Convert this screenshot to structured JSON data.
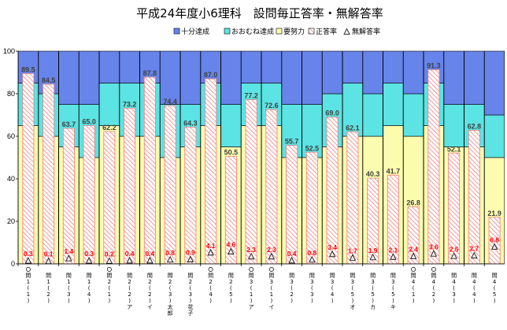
{
  "chart_data": {
    "type": "bar",
    "title": "平成24年度小6理科　設問毎正答率・無解答率",
    "legend_position": "top-right",
    "ylim": [
      0,
      100
    ],
    "y_ticks": [
      "0",
      "20",
      "40",
      "60",
      "80",
      "100"
    ],
    "grid": false,
    "series_names": {
      "full": "十分達成",
      "mostly": "おおむね達成",
      "effort": "要努力",
      "correct": "正答率",
      "noanswer": "無解答率"
    },
    "colors": {
      "full": "#6684ea",
      "mostly": "#5ce3e3",
      "effort": "#fcfcae",
      "correct_stripe": "#ee7f7f",
      "noanswer_fill": "#eeeeee",
      "frame": "#000000"
    },
    "categories": [
      {
        "marked": true,
        "code": "問1(1)",
        "label_lines": [
          "問",
          "1",
          "(",
          "1",
          ")"
        ]
      },
      {
        "marked": false,
        "code": "問1(2)",
        "label_lines": [
          "問",
          "1",
          "(",
          "2",
          ")"
        ]
      },
      {
        "marked": false,
        "code": "問1(3)",
        "label_lines": [
          "問",
          "1",
          "(",
          "3",
          ")"
        ]
      },
      {
        "marked": false,
        "code": "問1(4)",
        "label_lines": [
          "問",
          "1",
          "(",
          "4",
          ")"
        ]
      },
      {
        "marked": true,
        "code": "問2(1)",
        "label_lines": [
          "問",
          "2",
          "(",
          "1",
          ")"
        ]
      },
      {
        "marked": false,
        "code": "問2(2)ア",
        "label_lines": [
          "問",
          "2",
          "(",
          "2",
          ")",
          "ア"
        ]
      },
      {
        "marked": false,
        "code": "問2(2)イ",
        "label_lines": [
          "問",
          "2",
          "(",
          "2",
          ")",
          "イ"
        ]
      },
      {
        "marked": false,
        "code": "問2(3)太郎",
        "label_lines": [
          "問",
          "2",
          "(",
          "3",
          ")",
          "太",
          "郎"
        ]
      },
      {
        "marked": false,
        "code": "問2(3)花子",
        "label_lines": [
          "問",
          "2",
          "(",
          "3",
          ")",
          "花",
          "子"
        ]
      },
      {
        "marked": true,
        "code": "問2(4)",
        "label_lines": [
          "問",
          "2",
          "(",
          "4",
          ")"
        ]
      },
      {
        "marked": false,
        "code": "問2(5)",
        "label_lines": [
          "問",
          "2",
          "(",
          "5",
          ")"
        ]
      },
      {
        "marked": true,
        "code": "問3(1)ア",
        "label_lines": [
          "問",
          "3",
          "(",
          "1",
          ")",
          "ア"
        ]
      },
      {
        "marked": true,
        "code": "問3(1)イ",
        "label_lines": [
          "問",
          "3",
          "(",
          "1",
          ")",
          "イ"
        ]
      },
      {
        "marked": false,
        "code": "問3(2)",
        "label_lines": [
          "問",
          "3",
          "(",
          "2",
          ")"
        ]
      },
      {
        "marked": false,
        "code": "問3(3)",
        "label_lines": [
          "問",
          "3",
          "(",
          "3",
          ")"
        ]
      },
      {
        "marked": false,
        "code": "問3(4)",
        "label_lines": [
          "問",
          "3",
          "(",
          "4",
          ")"
        ]
      },
      {
        "marked": false,
        "code": "問3(5)オ",
        "label_lines": [
          "問",
          "3",
          "(",
          "5",
          ")",
          "オ"
        ]
      },
      {
        "marked": false,
        "code": "問3(5)カ",
        "label_lines": [
          "問",
          "3",
          "(",
          "5",
          ")",
          "カ"
        ]
      },
      {
        "marked": false,
        "code": "問3(5)キ",
        "label_lines": [
          "問",
          "3",
          "(",
          "5",
          ")",
          "キ"
        ]
      },
      {
        "marked": true,
        "code": "問4(1)",
        "label_lines": [
          "問",
          "4",
          "(",
          "1",
          ")"
        ]
      },
      {
        "marked": true,
        "code": "問4(2)",
        "label_lines": [
          "問",
          "4",
          "(",
          "2",
          ")"
        ]
      },
      {
        "marked": false,
        "code": "問4(3)",
        "label_lines": [
          "問",
          "4",
          "(",
          "3",
          ")"
        ]
      },
      {
        "marked": false,
        "code": "問4(4)",
        "label_lines": [
          "問",
          "4",
          "(",
          "4",
          ")"
        ]
      },
      {
        "marked": false,
        "code": "問4(5)",
        "label_lines": [
          "問",
          "4",
          "(",
          "5",
          ")"
        ]
      }
    ],
    "series": [
      {
        "name": "要努力",
        "values": [
          65,
          60,
          55,
          50,
          65,
          60,
          60,
          50,
          55,
          65,
          55,
          65,
          65,
          50,
          50,
          55,
          60,
          60,
          65,
          60,
          65,
          55,
          55,
          50
        ]
      },
      {
        "name": "おおむね達成",
        "values": [
          20,
          20,
          20,
          25,
          20,
          25,
          25,
          25,
          20,
          20,
          20,
          20,
          20,
          25,
          25,
          25,
          25,
          20,
          20,
          20,
          20,
          20,
          20,
          20
        ]
      },
      {
        "name": "十分達成",
        "values": [
          15,
          20,
          25,
          25,
          15,
          15,
          15,
          25,
          25,
          15,
          25,
          15,
          15,
          25,
          25,
          20,
          15,
          20,
          15,
          20,
          15,
          25,
          25,
          30
        ]
      },
      {
        "name": "正答率",
        "values": [
          89.5,
          84.5,
          63.7,
          65.0,
          62.2,
          73.2,
          87.8,
          74.4,
          64.3,
          87.0,
          50.5,
          77.2,
          72.6,
          55.7,
          52.5,
          69.0,
          62.1,
          40.3,
          41.7,
          26.8,
          91.3,
          52.1,
          62.8,
          21.9
        ]
      },
      {
        "name": "無解答率",
        "values": [
          0.3,
          0.1,
          1.4,
          0.3,
          0.2,
          0.4,
          0.4,
          0.8,
          0.9,
          4.1,
          4.6,
          2.3,
          2.3,
          0.4,
          0.8,
          3.4,
          1.7,
          1.9,
          2.1,
          2.4,
          3.6,
          2.5,
          2.7,
          6.8
        ]
      }
    ]
  }
}
